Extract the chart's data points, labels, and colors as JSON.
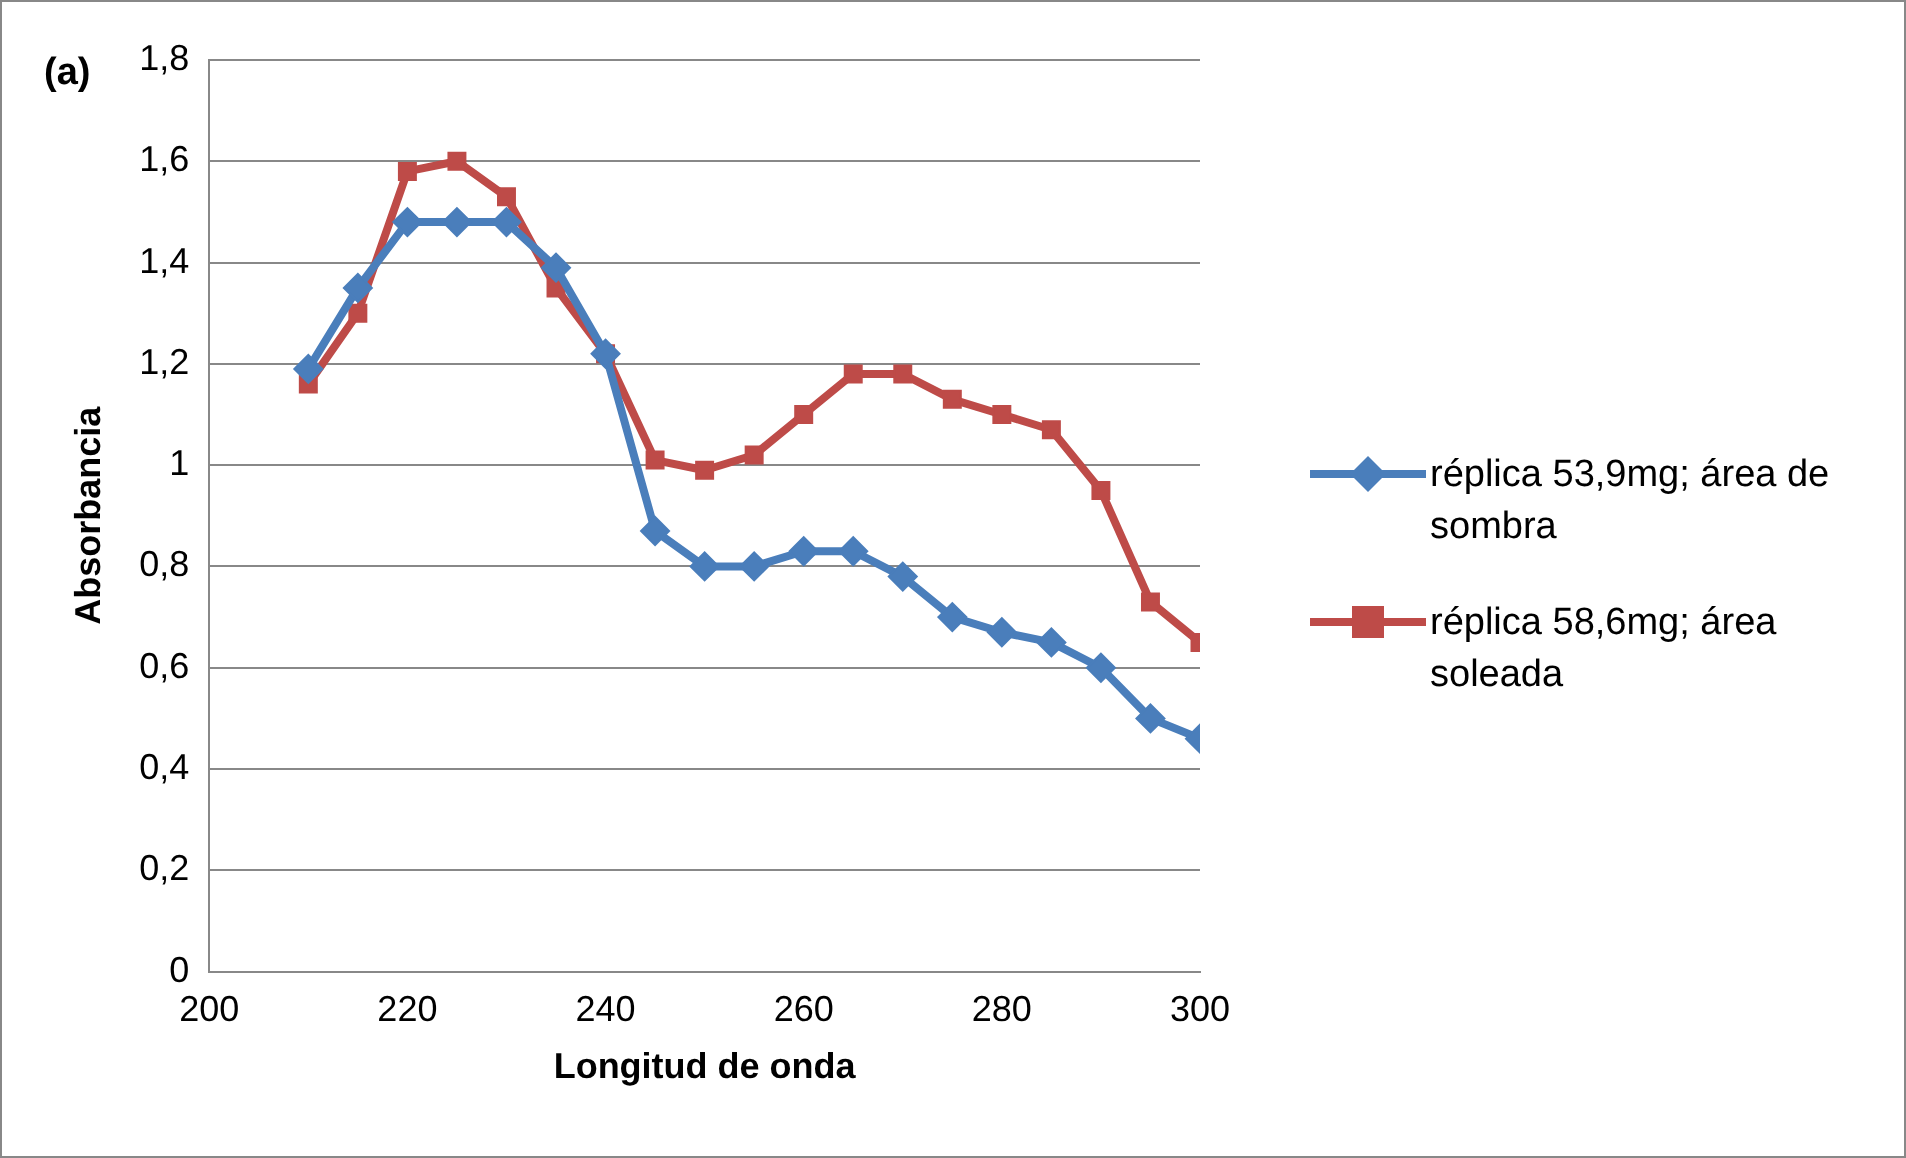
{
  "chart_data": {
    "type": "line",
    "title": "(a)",
    "xlabel": "Longitud de onda",
    "ylabel": "Absorbancia",
    "x": [
      210,
      215,
      220,
      225,
      230,
      235,
      240,
      245,
      250,
      255,
      260,
      265,
      270,
      275,
      280,
      285,
      290,
      295,
      300
    ],
    "series": [
      {
        "name": "réplica 53,9mg; área de sombra",
        "color": "#4a7ebb",
        "marker": "diamond",
        "values": [
          1.19,
          1.35,
          1.48,
          1.48,
          1.48,
          1.39,
          1.22,
          0.87,
          0.8,
          0.8,
          0.83,
          0.83,
          0.78,
          0.7,
          0.67,
          0.65,
          0.6,
          0.5,
          0.46
        ]
      },
      {
        "name": "réplica 58,6mg; área soleada",
        "color": "#be4b48",
        "marker": "square",
        "values": [
          1.16,
          1.3,
          1.58,
          1.6,
          1.53,
          1.35,
          1.22,
          1.01,
          0.99,
          1.02,
          1.1,
          1.18,
          1.18,
          1.13,
          1.1,
          1.07,
          0.95,
          0.73,
          0.65
        ]
      }
    ],
    "xlim": [
      200,
      300
    ],
    "xticks": [
      200,
      220,
      240,
      260,
      280,
      300
    ],
    "ylim": [
      0,
      1.8
    ],
    "yticks": [
      0,
      {
        "value": 0.2,
        "label": "0,2"
      },
      {
        "value": 0.4,
        "label": "0,4"
      },
      {
        "value": 0.6,
        "label": "0,6"
      },
      {
        "value": 0.8,
        "label": "0,8"
      },
      1,
      {
        "value": 1.2,
        "label": "1,2"
      },
      {
        "value": 1.4,
        "label": "1,4"
      },
      {
        "value": 1.6,
        "label": "1,6"
      },
      {
        "value": 1.8,
        "label": "1,8"
      }
    ],
    "grid": "y",
    "legend": "right"
  }
}
